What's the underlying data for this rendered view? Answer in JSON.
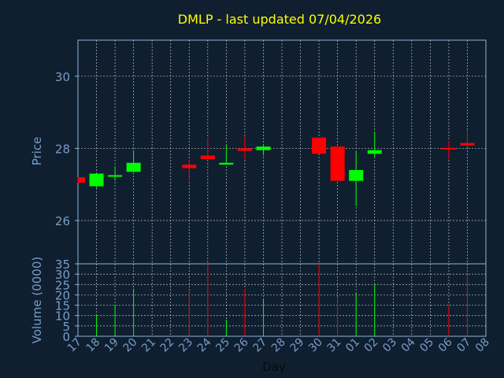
{
  "chart_data": {
    "type": "candlestick",
    "title": "DMLP - last updated 07/04/2026",
    "xlabel": "Day",
    "price_panel": {
      "ylabel": "Price",
      "ylim": [
        24.8,
        31.0
      ],
      "yticks": [
        26,
        28,
        30
      ]
    },
    "volume_panel": {
      "ylabel": "Volume (0000)",
      "ylim": [
        0,
        35
      ],
      "yticks": [
        0,
        5,
        10,
        15,
        20,
        25,
        30,
        35
      ]
    },
    "x_tick_labels": [
      "17",
      "18",
      "19",
      "20",
      "21",
      "22",
      "23",
      "24",
      "25",
      "26",
      "27",
      "28",
      "29",
      "30",
      "31",
      "01",
      "02",
      "03",
      "04",
      "05",
      "06",
      "07",
      "08"
    ],
    "candles": [
      {
        "day": "17",
        "open": 27.2,
        "high": 27.2,
        "low": 27.05,
        "close": 27.05,
        "volume": 0
      },
      {
        "day": "18",
        "open": 26.95,
        "high": 27.3,
        "low": 26.9,
        "close": 27.3,
        "volume": 10
      },
      {
        "day": "19",
        "open": 27.22,
        "high": 27.5,
        "low": 27.1,
        "close": 27.25,
        "volume": 15
      },
      {
        "day": "20",
        "open": 27.35,
        "high": 27.95,
        "low": 27.35,
        "close": 27.6,
        "volume": 23
      },
      {
        "day": "23",
        "open": 27.55,
        "high": 27.7,
        "low": 27.1,
        "close": 27.45,
        "volume": 22
      },
      {
        "day": "24",
        "open": 27.8,
        "high": 28.3,
        "low": 27.7,
        "close": 27.7,
        "volume": 35
      },
      {
        "day": "25",
        "open": 27.55,
        "high": 28.1,
        "low": 27.55,
        "close": 27.6,
        "volume": 8
      },
      {
        "day": "26",
        "open": 28.0,
        "high": 28.35,
        "low": 27.7,
        "close": 27.93,
        "volume": 23
      },
      {
        "day": "27",
        "open": 27.95,
        "high": 28.1,
        "low": 27.8,
        "close": 28.05,
        "volume": 18
      },
      {
        "day": "30",
        "open": 28.3,
        "high": 28.3,
        "low": 27.85,
        "close": 27.85,
        "volume": 35
      },
      {
        "day": "31",
        "open": 28.05,
        "high": 28.05,
        "low": 27.1,
        "close": 27.1,
        "volume": 19
      },
      {
        "day": "01",
        "open": 27.1,
        "high": 27.9,
        "low": 26.4,
        "close": 27.4,
        "volume": 21
      },
      {
        "day": "02",
        "open": 27.85,
        "high": 28.45,
        "low": 27.75,
        "close": 27.95,
        "volume": 25
      },
      {
        "day": "06",
        "open": 28.0,
        "high": 28.2,
        "low": 27.7,
        "close": 27.98,
        "volume": 15
      },
      {
        "day": "07",
        "open": 28.15,
        "high": 28.5,
        "low": 28.05,
        "close": 28.08,
        "volume": 30
      }
    ],
    "up_color": "#00ff00",
    "down_color": "#ff0000",
    "grid": true
  },
  "colors": {
    "background": "#0f1f30",
    "axis": "#8fb3d9",
    "label": "#7a9cc6",
    "title": "#ffff00",
    "grid": "#c0c0c0"
  }
}
